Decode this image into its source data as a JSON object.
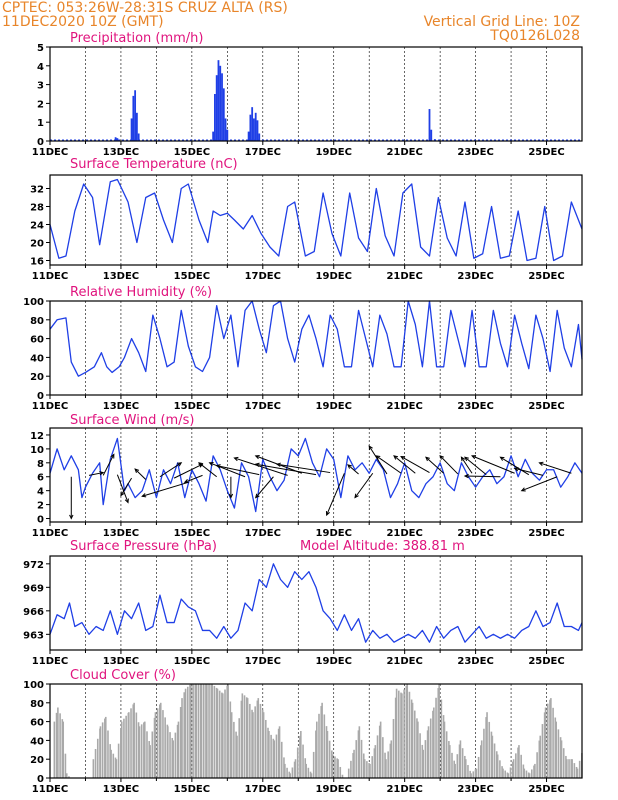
{
  "header": {
    "line1": "CPTEC:   053:26W-28:31S   CRUZ ALTA (RS)",
    "line2": "11DEC2020 10Z (GMT)",
    "right1": "Vertical Grid Line: 10Z",
    "right2": "TQ0126L028"
  },
  "colors": {
    "series": "#1f3fe6",
    "cloud": "#a9a9a9",
    "header": "#e8852a",
    "title": "#e0147e"
  },
  "x_ticks": [
    "11DEC",
    "13DEC",
    "15DEC",
    "17DEC",
    "19DEC",
    "21DEC",
    "23DEC",
    "25DEC"
  ],
  "chart_data": [
    {
      "type": "bar",
      "title": "Precipitation (mm/h)",
      "ylim": [
        0,
        5
      ],
      "yticks": [
        0,
        1,
        2,
        3,
        4,
        5
      ],
      "x_range": [
        0,
        15
      ],
      "bars": [
        {
          "x": 1.85,
          "v": 0.2
        },
        {
          "x": 1.9,
          "v": 0.15
        },
        {
          "x": 2.3,
          "v": 1.2
        },
        {
          "x": 2.35,
          "v": 2.4
        },
        {
          "x": 2.4,
          "v": 2.7
        },
        {
          "x": 2.45,
          "v": 1.5
        },
        {
          "x": 2.5,
          "v": 0.4
        },
        {
          "x": 4.6,
          "v": 0.5
        },
        {
          "x": 4.65,
          "v": 2.5
        },
        {
          "x": 4.7,
          "v": 3.5
        },
        {
          "x": 4.75,
          "v": 4.3
        },
        {
          "x": 4.8,
          "v": 4.0
        },
        {
          "x": 4.85,
          "v": 3.6
        },
        {
          "x": 4.9,
          "v": 2.8
        },
        {
          "x": 4.95,
          "v": 1.2
        },
        {
          "x": 5.0,
          "v": 0.6
        },
        {
          "x": 5.6,
          "v": 0.5
        },
        {
          "x": 5.65,
          "v": 1.4
        },
        {
          "x": 5.7,
          "v": 1.8
        },
        {
          "x": 5.75,
          "v": 1.2
        },
        {
          "x": 5.8,
          "v": 1.5
        },
        {
          "x": 5.85,
          "v": 1.1
        },
        {
          "x": 5.9,
          "v": 0.4
        },
        {
          "x": 10.7,
          "v": 1.7
        },
        {
          "x": 10.75,
          "v": 0.6
        },
        {
          "x": 10.85,
          "v": 0.1
        }
      ]
    },
    {
      "type": "line",
      "title": "Surface Temperature (nC)",
      "ylim": [
        15,
        35
      ],
      "yticks": [
        16,
        20,
        24,
        28,
        32
      ],
      "x_range": [
        0,
        15
      ],
      "x": [
        0,
        0.25,
        0.45,
        0.7,
        0.95,
        1.2,
        1.4,
        1.7,
        1.9,
        2.2,
        2.45,
        2.7,
        2.95,
        3.2,
        3.45,
        3.7,
        3.9,
        4.2,
        4.45,
        4.6,
        4.8,
        5.0,
        5.2,
        5.45,
        5.7,
        5.95,
        6.2,
        6.45,
        6.7,
        6.9,
        7.2,
        7.45,
        7.7,
        7.95,
        8.2,
        8.45,
        8.7,
        8.95,
        9.2,
        9.45,
        9.7,
        9.95,
        10.2,
        10.45,
        10.7,
        10.95,
        11.2,
        11.45,
        11.7,
        11.95,
        12.2,
        12.45,
        12.7,
        12.95,
        13.2,
        13.45,
        13.7,
        13.95,
        14.2,
        14.45,
        14.7,
        15
      ],
      "values": [
        24,
        16.5,
        17,
        27,
        33,
        30,
        19.5,
        33.5,
        34,
        29,
        20,
        30,
        31,
        25,
        20,
        32,
        33,
        25,
        20,
        27,
        26,
        26.5,
        25,
        23,
        26,
        22,
        19,
        17,
        28,
        29,
        17,
        18,
        31,
        22,
        17,
        31,
        21,
        18,
        32,
        21.5,
        17,
        31,
        33,
        19,
        17,
        30,
        21,
        17,
        29,
        16.5,
        17.5,
        28,
        16.5,
        17,
        27,
        16,
        16.5,
        28,
        16,
        17,
        29,
        23
      ]
    },
    {
      "type": "line",
      "title": "Relative Humidity (%)",
      "ylim": [
        0,
        100
      ],
      "yticks": [
        0,
        20,
        40,
        60,
        80,
        100
      ],
      "x_range": [
        0,
        15
      ],
      "x": [
        0,
        0.2,
        0.45,
        0.6,
        0.8,
        1.0,
        1.25,
        1.45,
        1.6,
        1.75,
        1.95,
        2.1,
        2.3,
        2.5,
        2.7,
        2.9,
        3.1,
        3.3,
        3.5,
        3.7,
        3.9,
        4.1,
        4.3,
        4.5,
        4.7,
        4.9,
        5.1,
        5.3,
        5.5,
        5.7,
        5.9,
        6.1,
        6.3,
        6.5,
        6.7,
        6.9,
        7.1,
        7.3,
        7.5,
        7.7,
        7.9,
        8.1,
        8.3,
        8.5,
        8.7,
        8.9,
        9.1,
        9.3,
        9.5,
        9.7,
        9.9,
        10.1,
        10.3,
        10.5,
        10.7,
        10.9,
        11.1,
        11.3,
        11.5,
        11.7,
        11.9,
        12.1,
        12.3,
        12.5,
        12.7,
        12.9,
        13.1,
        13.3,
        13.5,
        13.7,
        13.9,
        14.1,
        14.3,
        14.5,
        14.7,
        14.9,
        15
      ],
      "values": [
        70,
        80,
        82,
        35,
        20,
        24,
        30,
        45,
        30,
        24,
        30,
        40,
        60,
        45,
        25,
        85,
        60,
        30,
        35,
        90,
        52,
        30,
        25,
        40,
        95,
        60,
        85,
        30,
        90,
        100,
        70,
        45,
        95,
        100,
        60,
        35,
        70,
        85,
        60,
        30,
        85,
        70,
        30,
        30,
        90,
        60,
        30,
        85,
        65,
        30,
        30,
        100,
        75,
        30,
        100,
        30,
        30,
        90,
        60,
        30,
        90,
        30,
        30,
        90,
        55,
        30,
        85,
        55,
        28,
        85,
        60,
        25,
        90,
        50,
        30,
        75,
        38
      ]
    },
    {
      "type": "line",
      "title": "Surface Wind (m/s)",
      "ylim": [
        -0.5,
        13
      ],
      "yticks": [
        0,
        2,
        4,
        6,
        8,
        10,
        12
      ],
      "x_range": [
        0,
        15
      ],
      "x": [
        0,
        0.2,
        0.4,
        0.6,
        0.8,
        0.9,
        1.0,
        1.2,
        1.4,
        1.5,
        1.7,
        1.9,
        2.1,
        2.2,
        2.4,
        2.6,
        2.8,
        3.0,
        3.2,
        3.4,
        3.6,
        3.8,
        4.0,
        4.2,
        4.4,
        4.6,
        4.8,
        5.0,
        5.2,
        5.4,
        5.6,
        5.8,
        6.0,
        6.2,
        6.4,
        6.6,
        6.8,
        7.0,
        7.2,
        7.4,
        7.6,
        7.8,
        8.0,
        8.2,
        8.4,
        8.6,
        8.8,
        9.0,
        9.2,
        9.4,
        9.6,
        9.8,
        10.0,
        10.2,
        10.4,
        10.6,
        10.8,
        11.0,
        11.2,
        11.4,
        11.6,
        11.8,
        12.0,
        12.2,
        12.4,
        12.6,
        12.8,
        13.0,
        13.2,
        13.4,
        13.6,
        13.8,
        14.0,
        14.2,
        14.4,
        14.6,
        14.8,
        15
      ],
      "values": [
        6.5,
        10,
        7,
        9,
        7,
        3,
        4.5,
        6.5,
        8,
        2,
        8.5,
        11.5,
        4,
        5,
        3,
        4,
        7,
        3,
        7,
        5,
        8,
        3,
        7,
        5,
        2.5,
        9,
        7,
        4,
        1.5,
        8,
        6,
        1,
        8.5,
        6,
        4,
        5.5,
        10,
        9,
        11.5,
        8,
        6,
        10,
        8.5,
        3,
        9,
        7,
        8,
        6.5,
        8.5,
        7,
        3,
        5,
        8,
        4,
        3,
        5,
        6,
        8,
        5,
        4,
        8,
        6,
        4.5,
        6,
        7,
        5,
        6,
        9,
        6,
        8.5,
        6.5,
        5.5,
        7,
        7,
        4.5,
        6,
        8,
        6.5
      ],
      "arrows": [
        {
          "x": 0.6,
          "y": 6,
          "dx": 0.0,
          "dy": -6
        },
        {
          "x": 1.1,
          "y": 6.2,
          "dx": 0.4,
          "dy": 0.4
        },
        {
          "x": 1.5,
          "y": 6.2,
          "dx": 0.3,
          "dy": 3
        },
        {
          "x": 1.9,
          "y": 6.3,
          "dx": 0.3,
          "dy": -4
        },
        {
          "x": 2.3,
          "y": 5.8,
          "dx": -0.3,
          "dy": -2.5
        },
        {
          "x": 2.7,
          "y": 5.6,
          "dx": -0.3,
          "dy": 1.5
        },
        {
          "x": 3.1,
          "y": 6,
          "dx": 0.6,
          "dy": 2
        },
        {
          "x": 3.5,
          "y": 5.8,
          "dx": 0.8,
          "dy": 2
        },
        {
          "x": 3.9,
          "y": 5.2,
          "dx": -1.3,
          "dy": -2
        },
        {
          "x": 4.3,
          "y": 6.2,
          "dx": -0.5,
          "dy": -1
        },
        {
          "x": 4.7,
          "y": 6.0,
          "dx": -0.5,
          "dy": 2
        },
        {
          "x": 5.1,
          "y": 6.0,
          "dx": 0.0,
          "dy": -3
        },
        {
          "x": 5.5,
          "y": 6.0,
          "dx": -1.0,
          "dy": 2
        },
        {
          "x": 5.9,
          "y": 6.3,
          "dx": -1.2,
          "dy": 1.3
        },
        {
          "x": 6.3,
          "y": 6.0,
          "dx": -0.5,
          "dy": -3
        },
        {
          "x": 6.7,
          "y": 6.2,
          "dx": -1.5,
          "dy": 2.5
        },
        {
          "x": 7.1,
          "y": 6.5,
          "dx": -1.3,
          "dy": 2.5
        },
        {
          "x": 7.5,
          "y": 6.3,
          "dx": -1.7,
          "dy": 1.5
        },
        {
          "x": 7.9,
          "y": 6.6,
          "dx": -1.5,
          "dy": 1.2
        },
        {
          "x": 8.3,
          "y": 6.5,
          "dx": -0.5,
          "dy": -6
        },
        {
          "x": 8.7,
          "y": 6.4,
          "dx": -0.3,
          "dy": 1.3
        },
        {
          "x": 9.1,
          "y": 6.5,
          "dx": -0.5,
          "dy": -3.5
        },
        {
          "x": 9.5,
          "y": 6.4,
          "dx": -0.5,
          "dy": 4
        },
        {
          "x": 9.9,
          "y": 6.5,
          "dx": -0.7,
          "dy": 2.5
        },
        {
          "x": 10.3,
          "y": 6.5,
          "dx": -0.6,
          "dy": 2.5
        },
        {
          "x": 10.7,
          "y": 6.6,
          "dx": -0.8,
          "dy": 2.3
        },
        {
          "x": 11.1,
          "y": 6.5,
          "dx": -0.5,
          "dy": 2.3
        },
        {
          "x": 11.5,
          "y": 6.4,
          "dx": -0.5,
          "dy": 2.6
        },
        {
          "x": 11.9,
          "y": 6.5,
          "dx": -0.3,
          "dy": 2.3
        },
        {
          "x": 12.3,
          "y": 6.3,
          "dx": -0.6,
          "dy": 2.5
        },
        {
          "x": 12.7,
          "y": 6.0,
          "dx": -1.0,
          "dy": 0.1
        },
        {
          "x": 13.1,
          "y": 6.5,
          "dx": -1.2,
          "dy": 2.5
        },
        {
          "x": 13.5,
          "y": 6.3,
          "dx": -0.8,
          "dy": 2.5
        },
        {
          "x": 13.9,
          "y": 6.2,
          "dx": -0.8,
          "dy": 1.0
        },
        {
          "x": 14.3,
          "y": 6.0,
          "dx": -1.0,
          "dy": -2.0
        },
        {
          "x": 14.7,
          "y": 6.5,
          "dx": -0.9,
          "dy": 1.5
        }
      ]
    },
    {
      "type": "line",
      "title": "Surface Pressure (hPa)",
      "annotation": "Model Altitude: 388.81  m",
      "ylim": [
        961,
        973
      ],
      "yticks": [
        963,
        966,
        969,
        972
      ],
      "x_range": [
        0,
        15
      ],
      "x": [
        0,
        0.2,
        0.4,
        0.55,
        0.7,
        0.9,
        1.1,
        1.3,
        1.5,
        1.7,
        1.9,
        2.1,
        2.3,
        2.5,
        2.7,
        2.9,
        3.1,
        3.3,
        3.5,
        3.7,
        3.9,
        4.1,
        4.3,
        4.5,
        4.7,
        4.9,
        5.1,
        5.3,
        5.5,
        5.7,
        5.9,
        6.1,
        6.3,
        6.5,
        6.7,
        6.9,
        7.1,
        7.3,
        7.5,
        7.7,
        7.9,
        8.1,
        8.3,
        8.5,
        8.7,
        8.9,
        9.1,
        9.3,
        9.5,
        9.7,
        9.9,
        10.1,
        10.3,
        10.5,
        10.7,
        10.9,
        11.1,
        11.3,
        11.5,
        11.7,
        11.9,
        12.1,
        12.3,
        12.5,
        12.7,
        12.9,
        13.1,
        13.3,
        13.5,
        13.7,
        13.9,
        14.1,
        14.3,
        14.5,
        14.7,
        14.9,
        15
      ],
      "values": [
        963,
        965.5,
        965,
        967,
        964,
        964.5,
        963,
        964,
        963.5,
        966,
        963,
        966,
        965,
        967,
        963.5,
        964,
        968,
        964.5,
        964.5,
        967.5,
        966.5,
        966,
        963.5,
        963.5,
        962.5,
        964,
        962.5,
        963.5,
        967,
        966,
        970,
        969,
        972,
        970,
        969,
        971,
        970,
        971,
        969,
        966,
        965,
        963.5,
        965.5,
        963.5,
        965,
        962,
        963.5,
        962.5,
        963,
        962,
        962.5,
        963,
        962.5,
        963.5,
        962,
        964,
        962.5,
        963.5,
        964,
        962,
        963,
        964,
        962.5,
        963,
        962.5,
        963,
        962.5,
        963.5,
        964,
        966,
        964,
        964.5,
        967,
        964,
        964,
        963.5,
        964.5
      ]
    },
    {
      "type": "area",
      "title": "Cloud Cover (%)",
      "ylim": [
        0,
        100
      ],
      "yticks": [
        0,
        20,
        40,
        60,
        80,
        100
      ],
      "x_range": [
        0,
        15
      ],
      "x": [
        0,
        0.1,
        0.2,
        0.35,
        0.45,
        0.55,
        1.0,
        1.2,
        1.4,
        1.55,
        1.7,
        1.85,
        2.0,
        2.2,
        2.35,
        2.5,
        2.65,
        2.8,
        2.95,
        3.1,
        3.3,
        3.45,
        3.6,
        3.7,
        3.8,
        3.95,
        4.1,
        4.25,
        4.4,
        4.55,
        4.7,
        4.85,
        5.0,
        5.1,
        5.25,
        5.4,
        5.55,
        5.7,
        5.85,
        6.0,
        6.15,
        6.3,
        6.45,
        6.6,
        6.75,
        6.9,
        7.05,
        7.2,
        7.35,
        7.5,
        7.65,
        7.8,
        7.95,
        8.1,
        8.25,
        8.4,
        8.55,
        8.7,
        8.85,
        9.0,
        9.15,
        9.3,
        9.45,
        9.6,
        9.75,
        9.9,
        10.05,
        10.2,
        10.35,
        10.5,
        10.65,
        10.8,
        10.95,
        11.1,
        11.25,
        11.4,
        11.55,
        11.7,
        11.85,
        12.0,
        12.15,
        12.3,
        12.45,
        12.6,
        12.75,
        12.9,
        13.05,
        13.2,
        13.35,
        13.5,
        13.65,
        13.8,
        13.95,
        14.1,
        14.25,
        14.4,
        14.55,
        14.7,
        14.85,
        15
      ],
      "values": [
        0,
        60,
        75,
        60,
        5,
        0,
        0,
        20,
        55,
        65,
        30,
        20,
        60,
        70,
        80,
        55,
        60,
        35,
        70,
        80,
        55,
        40,
        60,
        85,
        95,
        100,
        100,
        100,
        100,
        100,
        95,
        90,
        100,
        70,
        45,
        90,
        85,
        70,
        85,
        70,
        50,
        40,
        55,
        15,
        5,
        20,
        50,
        15,
        5,
        60,
        80,
        50,
        25,
        20,
        0,
        10,
        30,
        55,
        20,
        15,
        35,
        60,
        20,
        40,
        95,
        90,
        100,
        80,
        60,
        30,
        55,
        75,
        100,
        60,
        35,
        15,
        40,
        20,
        5,
        10,
        40,
        70,
        45,
        25,
        10,
        5,
        20,
        35,
        10,
        5,
        15,
        45,
        75,
        85,
        60,
        40,
        20,
        20,
        10,
        30
      ]
    }
  ]
}
